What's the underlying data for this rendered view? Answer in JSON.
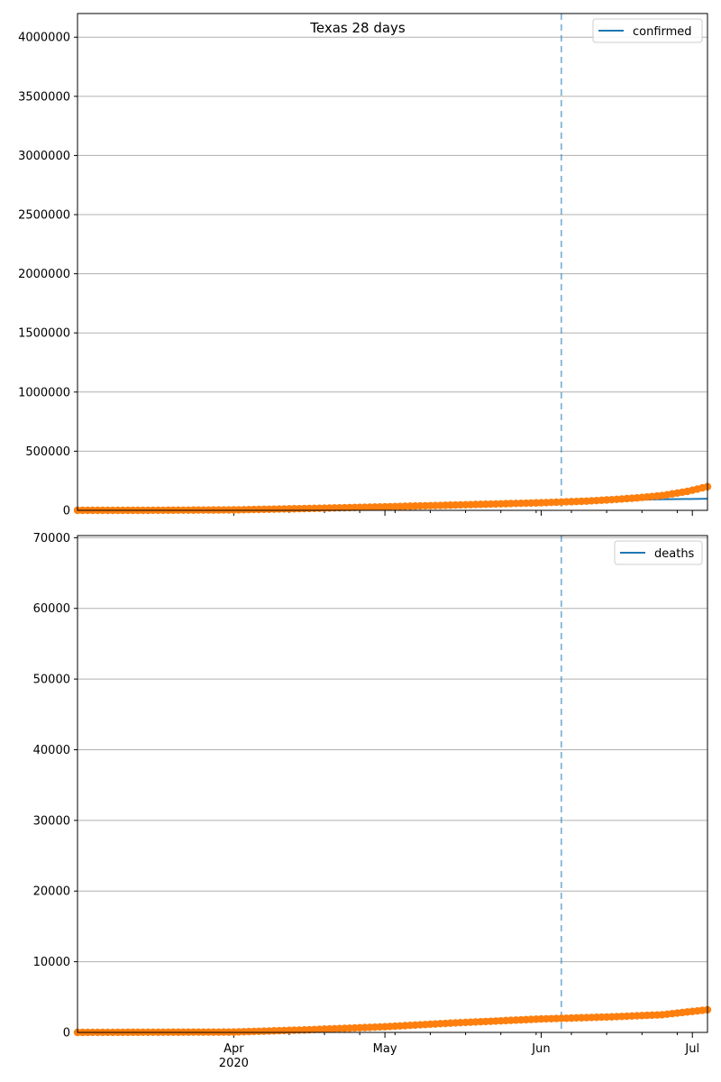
{
  "figure_title": "Texas 28 days",
  "colors": {
    "actual": "#1f77b4",
    "model": "#ff7f0e",
    "grid": "#b0b0b0",
    "vline": "#1f77b4"
  },
  "x_axis": {
    "start": "2020-03-01",
    "end": "2020-07-04",
    "month_ticks": [
      {
        "date": "2020-04-01",
        "label": "Apr",
        "sub": "2020"
      },
      {
        "date": "2020-05-01",
        "label": "May",
        "sub": ""
      },
      {
        "date": "2020-06-01",
        "label": "Jun",
        "sub": ""
      },
      {
        "date": "2020-07-01",
        "label": "Jul",
        "sub": ""
      }
    ],
    "vline_date": "2020-06-05"
  },
  "chart_data": [
    {
      "type": "line",
      "legend": "confirmed",
      "legend_position": "top-right",
      "grid": "y",
      "ylim": [
        0,
        4200000
      ],
      "yticks": [
        "0",
        "500000",
        "1000000",
        "1500000",
        "2000000",
        "2500000",
        "3000000",
        "3500000",
        "4000000"
      ],
      "series": [
        {
          "name": "confirmed",
          "style": "line",
          "points": [
            [
              "2020-03-01",
              0
            ],
            [
              "2020-03-15",
              60
            ],
            [
              "2020-04-01",
              3700
            ],
            [
              "2020-04-15",
              15000
            ],
            [
              "2020-05-01",
              30000
            ],
            [
              "2020-05-15",
              45000
            ],
            [
              "2020-06-01",
              64000
            ],
            [
              "2020-06-05",
              72000
            ],
            [
              "2020-06-15",
              85000
            ],
            [
              "2020-06-25",
              93000
            ],
            [
              "2020-07-04",
              98000
            ]
          ]
        },
        {
          "style": "markers",
          "points": [
            [
              "2020-03-01",
              0
            ],
            [
              "2020-03-15",
              60
            ],
            [
              "2020-04-01",
              3700
            ],
            [
              "2020-04-15",
              15000
            ],
            [
              "2020-05-01",
              30000
            ],
            [
              "2020-05-15",
              45000
            ],
            [
              "2020-06-01",
              64000
            ],
            [
              "2020-06-10",
              78000
            ],
            [
              "2020-06-15",
              90000
            ],
            [
              "2020-06-20",
              105000
            ],
            [
              "2020-06-25",
              125000
            ],
            [
              "2020-06-30",
              160000
            ],
            [
              "2020-07-04",
              200000
            ]
          ]
        }
      ]
    },
    {
      "type": "line",
      "legend": "deaths",
      "legend_position": "top-right",
      "grid": "y",
      "ylim": [
        0,
        70300
      ],
      "yticks": [
        "0",
        "10000",
        "20000",
        "30000",
        "40000",
        "50000",
        "60000",
        "70000"
      ],
      "series": [
        {
          "name": "deaths",
          "style": "line",
          "points": [
            [
              "2020-03-01",
              0
            ],
            [
              "2020-04-01",
              50
            ],
            [
              "2020-04-15",
              350
            ],
            [
              "2020-05-01",
              800
            ],
            [
              "2020-05-15",
              1350
            ],
            [
              "2020-06-01",
              1900
            ],
            [
              "2020-06-05",
              2050
            ],
            [
              "2020-06-15",
              2300
            ],
            [
              "2020-07-04",
              3000
            ]
          ]
        },
        {
          "style": "markers",
          "points": [
            [
              "2020-03-01",
              0
            ],
            [
              "2020-04-01",
              50
            ],
            [
              "2020-04-15",
              350
            ],
            [
              "2020-05-01",
              800
            ],
            [
              "2020-05-15",
              1350
            ],
            [
              "2020-06-01",
              1900
            ],
            [
              "2020-06-15",
              2200
            ],
            [
              "2020-06-25",
              2500
            ],
            [
              "2020-07-04",
              3200
            ]
          ]
        }
      ]
    }
  ]
}
